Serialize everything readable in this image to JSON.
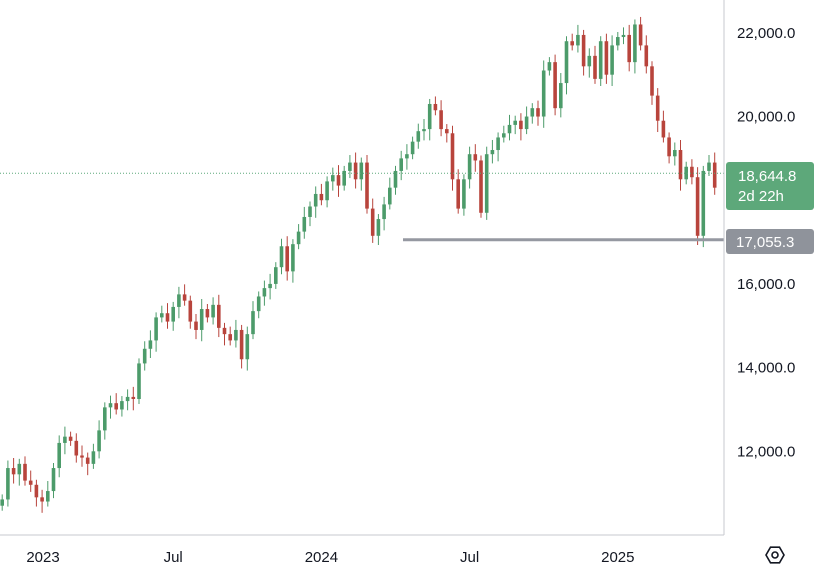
{
  "chart_data": {
    "type": "candlestick",
    "timeframe": "weekly",
    "ylim": [
      10000,
      23000
    ],
    "y_ticks": [
      "22,000.0",
      "20,000.0",
      "18,644.8",
      "17,055.3",
      "16,000.0",
      "14,000.0",
      "12,000.0"
    ],
    "y_tick_values": [
      22000,
      20000,
      16000,
      14000,
      12000
    ],
    "x_ticks": [
      {
        "label": "2023",
        "week": 1
      },
      {
        "label": "Jul",
        "week": 27
      },
      {
        "label": "2024",
        "week": 53
      },
      {
        "label": "Jul",
        "week": 79
      },
      {
        "label": "2025",
        "week": 105
      }
    ],
    "first_week": -3,
    "closes": [
      10850,
      11600,
      11450,
      11700,
      11300,
      11200,
      10900,
      10800,
      11050,
      11600,
      12200,
      12350,
      12250,
      11900,
      11850,
      11700,
      12000,
      12500,
      13050,
      13150,
      13000,
      13200,
      13300,
      13250,
      14100,
      14450,
      14650,
      15200,
      15300,
      15100,
      15450,
      15750,
      15600,
      15100,
      14900,
      15400,
      15200,
      15500,
      14950,
      14800,
      14650,
      14900,
      14200,
      14800,
      15350,
      15700,
      15900,
      16000,
      16400,
      16900,
      16300,
      16950,
      17250,
      17600,
      17850,
      18150,
      18000,
      18450,
      18600,
      18350,
      18700,
      18900,
      18500,
      18900,
      17800,
      17150,
      17550,
      17900,
      18300,
      18700,
      19000,
      19100,
      19400,
      19650,
      19700,
      20300,
      20150,
      19700,
      19600,
      18500,
      17800,
      18500,
      19100,
      18950,
      17700,
      19100,
      19200,
      19500,
      19600,
      19800,
      19900,
      19700,
      20000,
      20200,
      20000,
      21100,
      21300,
      20200,
      20800,
      21800,
      21700,
      21950,
      21200,
      21450,
      20900,
      21800,
      21000,
      21700,
      21900,
      21950,
      21300,
      22200,
      21700,
      21200,
      20500,
      19900,
      19500,
      19050,
      19200,
      18500,
      18800,
      18550,
      17150,
      18700,
      18900,
      18300,
      18644.8
    ],
    "marked_price": "18,644.8",
    "countdown": "2d 22h",
    "support_level": 17055.3,
    "support_label": "17,055.3",
    "colors": {
      "up": "#4c9b6a",
      "down": "#b8443c",
      "support_line": "#9598a1",
      "price_badge": "#5da87a",
      "support_badge": "#9598a1",
      "axis_border": "#9598a1",
      "dotted_line": "#5da87a"
    }
  },
  "settings_icon": "gear-hexagon-icon"
}
